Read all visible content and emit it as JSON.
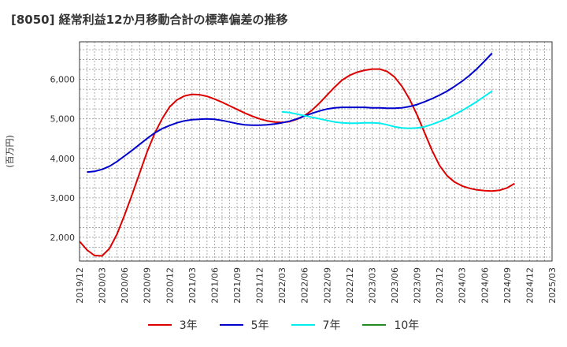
{
  "title": "[8050]  経常利益12か月移動合計の標準偏差の推移",
  "chart_data": {
    "type": "line",
    "title": "[8050]  経常利益12か月移動合計の標準偏差の推移",
    "ylabel": "(百万円)",
    "xlabel": "",
    "ylim": [
      1400,
      6950
    ],
    "yticks": [
      2000,
      3000,
      4000,
      5000,
      6000
    ],
    "ytick_labels": [
      "2,000",
      "3,000",
      "4,000",
      "5,000",
      "6,000"
    ],
    "xlim": [
      "2019-12",
      "2025-03"
    ],
    "xticks": [
      "2019/12",
      "2020/03",
      "2020/06",
      "2020/09",
      "2020/12",
      "2021/03",
      "2021/06",
      "2021/09",
      "2021/12",
      "2022/03",
      "2022/06",
      "2022/09",
      "2022/12",
      "2023/03",
      "2023/06",
      "2023/09",
      "2023/12",
      "2024/03",
      "2024/06",
      "2024/09",
      "2024/12",
      "2025/03"
    ],
    "grid": true,
    "legend_position": "bottom",
    "series": [
      {
        "name": "3年",
        "color": "#dd0000",
        "points": [
          [
            "2019-12",
            1900
          ],
          [
            "2020-01",
            1680
          ],
          [
            "2020-02",
            1540
          ],
          [
            "2020-03",
            1530
          ],
          [
            "2020-04",
            1720
          ],
          [
            "2020-05",
            2080
          ],
          [
            "2020-06",
            2560
          ],
          [
            "2020-07",
            3080
          ],
          [
            "2020-08",
            3620
          ],
          [
            "2020-09",
            4160
          ],
          [
            "2020-10",
            4620
          ],
          [
            "2020-11",
            5000
          ],
          [
            "2020-12",
            5300
          ],
          [
            "2021-01",
            5480
          ],
          [
            "2021-02",
            5580
          ],
          [
            "2021-03",
            5620
          ],
          [
            "2021-04",
            5610
          ],
          [
            "2021-05",
            5570
          ],
          [
            "2021-06",
            5500
          ],
          [
            "2021-07",
            5420
          ],
          [
            "2021-08",
            5330
          ],
          [
            "2021-09",
            5240
          ],
          [
            "2021-10",
            5150
          ],
          [
            "2021-11",
            5070
          ],
          [
            "2021-12",
            5000
          ],
          [
            "2022-01",
            4950
          ],
          [
            "2022-02",
            4920
          ],
          [
            "2022-03",
            4910
          ],
          [
            "2022-04",
            4930
          ],
          [
            "2022-05",
            4990
          ],
          [
            "2022-06",
            5080
          ],
          [
            "2022-07",
            5220
          ],
          [
            "2022-08",
            5400
          ],
          [
            "2022-09",
            5600
          ],
          [
            "2022-10",
            5800
          ],
          [
            "2022-11",
            5980
          ],
          [
            "2022-12",
            6100
          ],
          [
            "2023-01",
            6180
          ],
          [
            "2023-02",
            6230
          ],
          [
            "2023-03",
            6260
          ],
          [
            "2023-04",
            6260
          ],
          [
            "2023-05",
            6200
          ],
          [
            "2023-06",
            6060
          ],
          [
            "2023-07",
            5820
          ],
          [
            "2023-08",
            5500
          ],
          [
            "2023-09",
            5100
          ],
          [
            "2023-10",
            4650
          ],
          [
            "2023-11",
            4200
          ],
          [
            "2023-12",
            3820
          ],
          [
            "2024-01",
            3560
          ],
          [
            "2024-02",
            3400
          ],
          [
            "2024-03",
            3300
          ],
          [
            "2024-04",
            3240
          ],
          [
            "2024-05",
            3200
          ],
          [
            "2024-06",
            3180
          ],
          [
            "2024-07",
            3170
          ],
          [
            "2024-08",
            3190
          ],
          [
            "2024-09",
            3250
          ],
          [
            "2024-10",
            3360
          ]
        ]
      },
      {
        "name": "5年",
        "color": "#0000cc",
        "points": [
          [
            "2020-01",
            3650
          ],
          [
            "2020-02",
            3670
          ],
          [
            "2020-03",
            3720
          ],
          [
            "2020-04",
            3800
          ],
          [
            "2020-05",
            3920
          ],
          [
            "2020-06",
            4060
          ],
          [
            "2020-07",
            4200
          ],
          [
            "2020-08",
            4350
          ],
          [
            "2020-09",
            4500
          ],
          [
            "2020-10",
            4640
          ],
          [
            "2020-11",
            4750
          ],
          [
            "2020-12",
            4830
          ],
          [
            "2021-01",
            4900
          ],
          [
            "2021-02",
            4950
          ],
          [
            "2021-03",
            4980
          ],
          [
            "2021-04",
            4990
          ],
          [
            "2021-05",
            5000
          ],
          [
            "2021-06",
            4990
          ],
          [
            "2021-07",
            4960
          ],
          [
            "2021-08",
            4920
          ],
          [
            "2021-09",
            4880
          ],
          [
            "2021-10",
            4850
          ],
          [
            "2021-11",
            4840
          ],
          [
            "2021-12",
            4840
          ],
          [
            "2022-01",
            4850
          ],
          [
            "2022-02",
            4870
          ],
          [
            "2022-03",
            4900
          ],
          [
            "2022-04",
            4940
          ],
          [
            "2022-05",
            5000
          ],
          [
            "2022-06",
            5070
          ],
          [
            "2022-07",
            5140
          ],
          [
            "2022-08",
            5200
          ],
          [
            "2022-09",
            5250
          ],
          [
            "2022-10",
            5280
          ],
          [
            "2022-11",
            5290
          ],
          [
            "2022-12",
            5290
          ],
          [
            "2023-01",
            5290
          ],
          [
            "2023-02",
            5290
          ],
          [
            "2023-03",
            5280
          ],
          [
            "2023-04",
            5280
          ],
          [
            "2023-05",
            5270
          ],
          [
            "2023-06",
            5270
          ],
          [
            "2023-07",
            5280
          ],
          [
            "2023-08",
            5310
          ],
          [
            "2023-09",
            5360
          ],
          [
            "2023-10",
            5430
          ],
          [
            "2023-11",
            5510
          ],
          [
            "2023-12",
            5600
          ],
          [
            "2024-01",
            5700
          ],
          [
            "2024-02",
            5820
          ],
          [
            "2024-03",
            5950
          ],
          [
            "2024-04",
            6100
          ],
          [
            "2024-05",
            6270
          ],
          [
            "2024-06",
            6460
          ],
          [
            "2024-07",
            6660
          ]
        ]
      },
      {
        "name": "7年",
        "color": "#00eeee",
        "points": [
          [
            "2022-03",
            5180
          ],
          [
            "2022-04",
            5160
          ],
          [
            "2022-05",
            5120
          ],
          [
            "2022-06",
            5080
          ],
          [
            "2022-07",
            5040
          ],
          [
            "2022-08",
            5000
          ],
          [
            "2022-09",
            4960
          ],
          [
            "2022-10",
            4920
          ],
          [
            "2022-11",
            4900
          ],
          [
            "2022-12",
            4890
          ],
          [
            "2023-01",
            4890
          ],
          [
            "2023-02",
            4900
          ],
          [
            "2023-03",
            4900
          ],
          [
            "2023-04",
            4890
          ],
          [
            "2023-05",
            4850
          ],
          [
            "2023-06",
            4800
          ],
          [
            "2023-07",
            4770
          ],
          [
            "2023-08",
            4760
          ],
          [
            "2023-09",
            4770
          ],
          [
            "2023-10",
            4800
          ],
          [
            "2023-11",
            4860
          ],
          [
            "2023-12",
            4930
          ],
          [
            "2024-01",
            5010
          ],
          [
            "2024-02",
            5110
          ],
          [
            "2024-03",
            5210
          ],
          [
            "2024-04",
            5320
          ],
          [
            "2024-05",
            5440
          ],
          [
            "2024-06",
            5570
          ],
          [
            "2024-07",
            5700
          ]
        ]
      },
      {
        "name": "10年",
        "color": "#228b22",
        "points": []
      }
    ]
  }
}
